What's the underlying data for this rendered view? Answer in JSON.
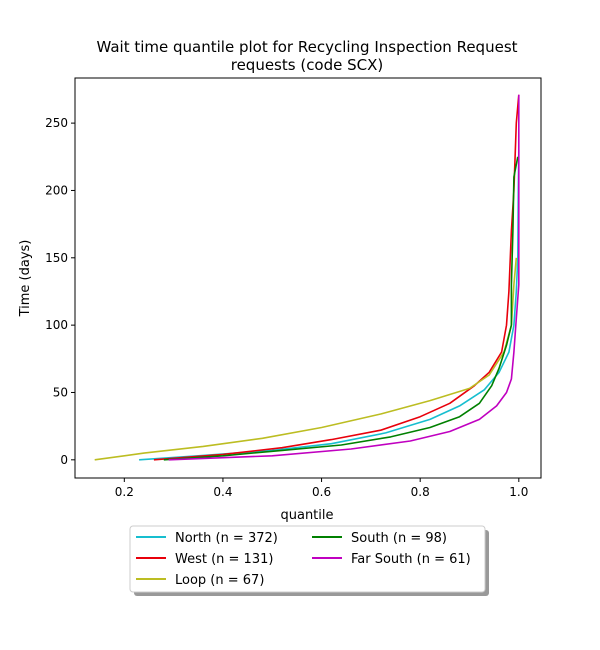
{
  "chart_data": {
    "type": "line",
    "title_line1": "Wait time quantile plot for Recycling Inspection Request",
    "title_line2": "requests (code SCX)",
    "xlabel": "quantile",
    "ylabel": "Time (days)",
    "xlim": [
      0.1,
      1.045
    ],
    "ylim": [
      -13.5,
      283.5
    ],
    "xticks": [
      0.2,
      0.4,
      0.6,
      0.8,
      1.0
    ],
    "xtick_labels": [
      "0.2",
      "0.4",
      "0.6",
      "0.8",
      "1.0"
    ],
    "yticks": [
      0,
      50,
      100,
      150,
      200,
      250
    ],
    "ytick_labels": [
      "0",
      "50",
      "100",
      "150",
      "200",
      "250"
    ],
    "grid": false,
    "legend_placement": "below",
    "series": [
      {
        "name": "North (n = 372)",
        "color": "#17becf",
        "points": [
          [
            0.23,
            0
          ],
          [
            0.35,
            3
          ],
          [
            0.5,
            7
          ],
          [
            0.62,
            12
          ],
          [
            0.73,
            20
          ],
          [
            0.82,
            30
          ],
          [
            0.88,
            40
          ],
          [
            0.93,
            52
          ],
          [
            0.96,
            65
          ],
          [
            0.98,
            80
          ],
          [
            0.99,
            100
          ],
          [
            0.995,
            125
          ],
          [
            0.998,
            150
          ],
          [
            0.999,
            200
          ],
          [
            1.0,
            230
          ]
        ]
      },
      {
        "name": "West (n = 131)",
        "color": "#e8000b",
        "points": [
          [
            0.26,
            0
          ],
          [
            0.4,
            4
          ],
          [
            0.52,
            9
          ],
          [
            0.62,
            15
          ],
          [
            0.72,
            22
          ],
          [
            0.8,
            32
          ],
          [
            0.86,
            42
          ],
          [
            0.91,
            55
          ],
          [
            0.94,
            65
          ],
          [
            0.965,
            80
          ],
          [
            0.975,
            100
          ],
          [
            0.98,
            125
          ],
          [
            0.985,
            170
          ],
          [
            0.99,
            200
          ],
          [
            0.995,
            250
          ],
          [
            1.0,
            271
          ]
        ]
      },
      {
        "name": "Loop (n = 67)",
        "color": "#bcbd22",
        "points": [
          [
            0.14,
            0
          ],
          [
            0.24,
            5
          ],
          [
            0.36,
            10
          ],
          [
            0.48,
            16
          ],
          [
            0.6,
            24
          ],
          [
            0.72,
            34
          ],
          [
            0.82,
            44
          ],
          [
            0.9,
            53
          ],
          [
            0.94,
            63
          ],
          [
            0.97,
            80
          ],
          [
            0.985,
            100
          ],
          [
            0.99,
            130
          ],
          [
            0.995,
            150
          ]
        ]
      },
      {
        "name": "South (n = 98)",
        "color": "#008000",
        "points": [
          [
            0.28,
            0
          ],
          [
            0.4,
            3
          ],
          [
            0.52,
            7
          ],
          [
            0.64,
            11
          ],
          [
            0.74,
            17
          ],
          [
            0.82,
            24
          ],
          [
            0.88,
            32
          ],
          [
            0.92,
            42
          ],
          [
            0.945,
            55
          ],
          [
            0.96,
            68
          ],
          [
            0.975,
            85
          ],
          [
            0.985,
            100
          ],
          [
            0.985,
            130
          ],
          [
            0.988,
            170
          ],
          [
            0.99,
            210
          ],
          [
            0.998,
            225
          ]
        ]
      },
      {
        "name": "Far South (n = 61)",
        "color": "#c000c0",
        "points": [
          [
            0.29,
            0
          ],
          [
            0.5,
            3
          ],
          [
            0.66,
            8
          ],
          [
            0.78,
            14
          ],
          [
            0.86,
            21
          ],
          [
            0.92,
            30
          ],
          [
            0.955,
            40
          ],
          [
            0.975,
            50
          ],
          [
            0.985,
            60
          ],
          [
            0.99,
            80
          ],
          [
            0.995,
            105
          ],
          [
            1.0,
            130
          ],
          [
            1.0,
            200
          ],
          [
            1.0,
            271
          ]
        ]
      }
    ]
  }
}
